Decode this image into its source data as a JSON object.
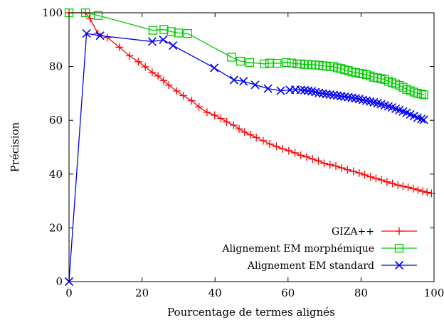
{
  "chart_data": {
    "type": "line",
    "title": "",
    "xlabel": "Pourcentage de termes alignés",
    "ylabel": "Précision",
    "xlim": [
      0,
      100
    ],
    "ylim": [
      0,
      100
    ],
    "xticks": [
      "0",
      "20",
      "40",
      "60",
      "80",
      "100"
    ],
    "yticks": [
      "0",
      "20",
      "40",
      "60",
      "80",
      "100"
    ],
    "grid": false,
    "legend": "bottom-right",
    "series": [
      {
        "name": "GIZA++",
        "color": "#ff0000",
        "marker": "plus",
        "x": [
          0,
          4.5,
          5.8,
          7.9,
          10.5,
          13.8,
          16.6,
          19.0,
          20.9,
          22.8,
          24.4,
          25.9,
          27.3,
          29.5,
          31.3,
          33.6,
          35.6,
          37.8,
          39.9,
          41.6,
          43.2,
          45.1,
          46.6,
          48.1,
          49.7,
          51.3,
          53.2,
          55.0,
          56.8,
          58.5,
          60.2,
          61.9,
          63.5,
          65.1,
          66.7,
          68.3,
          69.9,
          71.5,
          73.1,
          74.7,
          76.3,
          77.9,
          79.5,
          81.0,
          82.6,
          84.1,
          85.6,
          87.1,
          88.6,
          90.1,
          91.5,
          92.9,
          94.3,
          95.6,
          96.9,
          98.1,
          99.3
        ],
        "y": [
          100,
          100,
          97.8,
          92.3,
          90.8,
          87.2,
          84.0,
          81.8,
          79.9,
          77.8,
          76.5,
          74.8,
          73.1,
          70.9,
          69.2,
          67.3,
          65.0,
          63.0,
          61.9,
          60.7,
          59.4,
          58.2,
          56.8,
          55.6,
          54.6,
          53.6,
          52.4,
          51.2,
          50.3,
          49.4,
          48.7,
          47.9,
          47.0,
          46.4,
          45.6,
          44.9,
          44.0,
          43.5,
          43.0,
          42.3,
          41.6,
          41.0,
          40.4,
          39.7,
          39.0,
          38.4,
          37.8,
          37.1,
          36.5,
          35.9,
          35.5,
          35.1,
          34.6,
          34.1,
          33.6,
          33.2,
          32.8
        ]
      },
      {
        "name": "Alignement EM morphémique",
        "color": "#00cc00",
        "marker": "square",
        "x": [
          0,
          4.5,
          8.0,
          23.0,
          26.0,
          28.0,
          30.0,
          32.5,
          44.5,
          47.0,
          49.5,
          53.5,
          55.0,
          57.0,
          59.5,
          61.0,
          62.5,
          63.5,
          64.5,
          65.5,
          66.5,
          67.5,
          68.5,
          69.5,
          70.5,
          71.5,
          72.5,
          73.5,
          74.5,
          75.5,
          76.5,
          77.5,
          78.5,
          79.5,
          80.5,
          81.5,
          82.5,
          83.5,
          84.5,
          85.5,
          86.5,
          87.5,
          88.5,
          89.5,
          90.5,
          91.5,
          92.5,
          93.5,
          94.5,
          95.5,
          96.5,
          97.2
        ],
        "y": [
          100,
          100,
          99.0,
          93.5,
          93.8,
          93.0,
          92.5,
          92.3,
          83.5,
          82.0,
          81.5,
          81.0,
          81.3,
          81.2,
          81.5,
          81.3,
          81.0,
          81.0,
          80.8,
          80.8,
          80.7,
          80.6,
          80.5,
          80.3,
          80.2,
          80.0,
          80.0,
          79.5,
          79.3,
          78.8,
          78.5,
          78.0,
          77.8,
          77.5,
          77.3,
          77.0,
          76.5,
          76.0,
          75.8,
          75.5,
          75.2,
          74.5,
          74.0,
          73.5,
          73.0,
          72.3,
          71.5,
          71.0,
          70.5,
          70.0,
          69.8,
          69.5
        ]
      },
      {
        "name": "Alignement EM standard",
        "color": "#0000ee",
        "marker": "cross",
        "x": [
          0,
          4.8,
          8.5,
          22.8,
          25.8,
          28.5,
          39.8,
          45.2,
          47.8,
          51.0,
          54.5,
          58.0,
          60.5,
          62.0,
          63.5,
          64.5,
          65.5,
          66.5,
          67.5,
          68.5,
          69.5,
          70.5,
          71.5,
          72.5,
          73.5,
          74.5,
          75.5,
          76.5,
          77.5,
          78.5,
          79.5,
          80.5,
          81.5,
          82.5,
          83.5,
          84.5,
          85.5,
          86.5,
          87.5,
          88.5,
          89.5,
          90.5,
          91.5,
          92.5,
          93.5,
          94.5,
          95.5,
          96.5,
          97.2
        ],
        "y": [
          0,
          92.3,
          91.5,
          89.3,
          90.0,
          87.8,
          79.5,
          75.0,
          74.5,
          73.2,
          71.8,
          71.0,
          71.3,
          71.4,
          71.3,
          71.2,
          71.0,
          70.8,
          70.5,
          70.2,
          70.0,
          69.8,
          69.6,
          69.4,
          69.2,
          69.0,
          68.8,
          68.6,
          68.4,
          68.2,
          67.9,
          67.6,
          67.3,
          67.0,
          66.7,
          66.4,
          66.0,
          65.6,
          65.2,
          64.8,
          64.3,
          63.8,
          63.3,
          62.8,
          62.2,
          61.6,
          61.0,
          60.5,
          60.2
        ]
      }
    ]
  }
}
